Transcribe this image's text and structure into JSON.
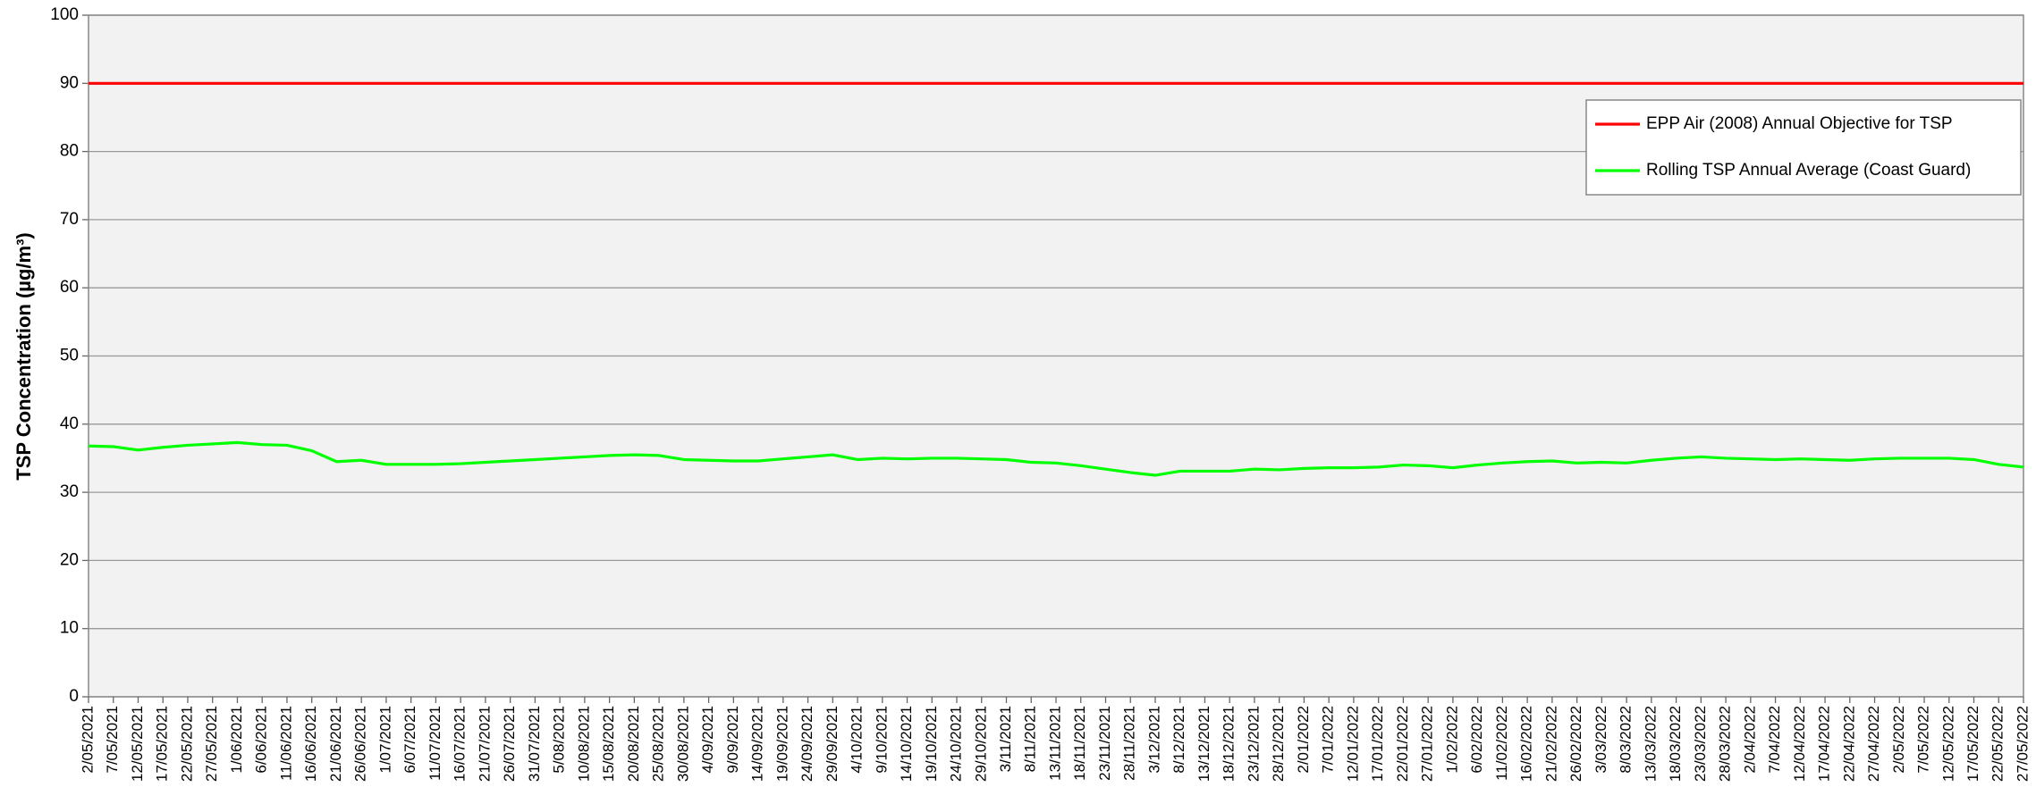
{
  "chart_data": {
    "type": "line",
    "y_label": "TSP Concentration (µg/m³)",
    "categories": [
      "2/05/2021",
      "7/05/2021",
      "12/05/2021",
      "17/05/2021",
      "22/05/2021",
      "27/05/2021",
      "1/06/2021",
      "6/06/2021",
      "11/06/2021",
      "16/06/2021",
      "21/06/2021",
      "26/06/2021",
      "1/07/2021",
      "6/07/2021",
      "11/07/2021",
      "16/07/2021",
      "21/07/2021",
      "26/07/2021",
      "31/07/2021",
      "5/08/2021",
      "10/08/2021",
      "15/08/2021",
      "20/08/2021",
      "25/08/2021",
      "30/08/2021",
      "4/09/2021",
      "9/09/2021",
      "14/09/2021",
      "19/09/2021",
      "24/09/2021",
      "29/09/2021",
      "4/10/2021",
      "9/10/2021",
      "14/10/2021",
      "19/10/2021",
      "24/10/2021",
      "29/10/2021",
      "3/11/2021",
      "8/11/2021",
      "13/11/2021",
      "18/11/2021",
      "23/11/2021",
      "28/11/2021",
      "3/12/2021",
      "8/12/2021",
      "13/12/2021",
      "18/12/2021",
      "23/12/2021",
      "28/12/2021",
      "2/01/2022",
      "7/01/2022",
      "12/01/2022",
      "17/01/2022",
      "22/01/2022",
      "27/01/2022",
      "1/02/2022",
      "6/02/2022",
      "11/02/2022",
      "16/02/2022",
      "21/02/2022",
      "26/02/2022",
      "3/03/2022",
      "8/03/2022",
      "13/03/2022",
      "18/03/2022",
      "23/03/2022",
      "28/03/2022",
      "2/04/2022",
      "7/04/2022",
      "12/04/2022",
      "17/04/2022",
      "22/04/2022",
      "27/04/2022",
      "2/05/2022",
      "7/05/2022",
      "12/05/2022",
      "17/05/2022",
      "22/05/2022",
      "27/05/2022"
    ],
    "series": [
      {
        "name": "EPP Air (2008) Annual Objective for TSP",
        "color": "#ff0000",
        "values": [
          90,
          90,
          90,
          90,
          90,
          90,
          90,
          90,
          90,
          90,
          90,
          90,
          90,
          90,
          90,
          90,
          90,
          90,
          90,
          90,
          90,
          90,
          90,
          90,
          90,
          90,
          90,
          90,
          90,
          90,
          90,
          90,
          90,
          90,
          90,
          90,
          90,
          90,
          90,
          90,
          90,
          90,
          90,
          90,
          90,
          90,
          90,
          90,
          90,
          90,
          90,
          90,
          90,
          90,
          90,
          90,
          90,
          90,
          90,
          90,
          90,
          90,
          90,
          90,
          90,
          90,
          90,
          90,
          90,
          90,
          90,
          90,
          90,
          90,
          90,
          90,
          90,
          90,
          90
        ]
      },
      {
        "name": "Rolling TSP Annual Average (Coast Guard)",
        "color": "#00ff00",
        "values": [
          36.8,
          36.7,
          36.2,
          36.6,
          36.9,
          37.1,
          37.3,
          37.0,
          36.9,
          36.1,
          34.5,
          34.7,
          34.1,
          34.1,
          34.1,
          34.2,
          34.4,
          34.6,
          34.8,
          35.0,
          35.2,
          35.4,
          35.5,
          35.4,
          34.8,
          34.7,
          34.6,
          34.6,
          34.9,
          35.2,
          35.5,
          34.8,
          35.0,
          34.9,
          35.0,
          35.0,
          34.9,
          34.8,
          34.4,
          34.3,
          33.9,
          33.4,
          32.9,
          32.5,
          33.1,
          33.1,
          33.1,
          33.4,
          33.3,
          33.5,
          33.6,
          33.6,
          33.7,
          34.0,
          33.9,
          33.6,
          34.0,
          34.3,
          34.5,
          34.6,
          34.3,
          34.4,
          34.3,
          34.7,
          35.0,
          35.2,
          35.0,
          34.9,
          34.8,
          34.9,
          34.8,
          34.7,
          34.9,
          35.0,
          35.0,
          35.0,
          34.8,
          34.1,
          33.7
        ]
      }
    ],
    "ylim": [
      0,
      100
    ],
    "yticks": [
      0,
      10,
      20,
      30,
      40,
      50,
      60,
      70,
      80,
      90,
      100
    ],
    "grid": true,
    "legend": "upper right"
  }
}
